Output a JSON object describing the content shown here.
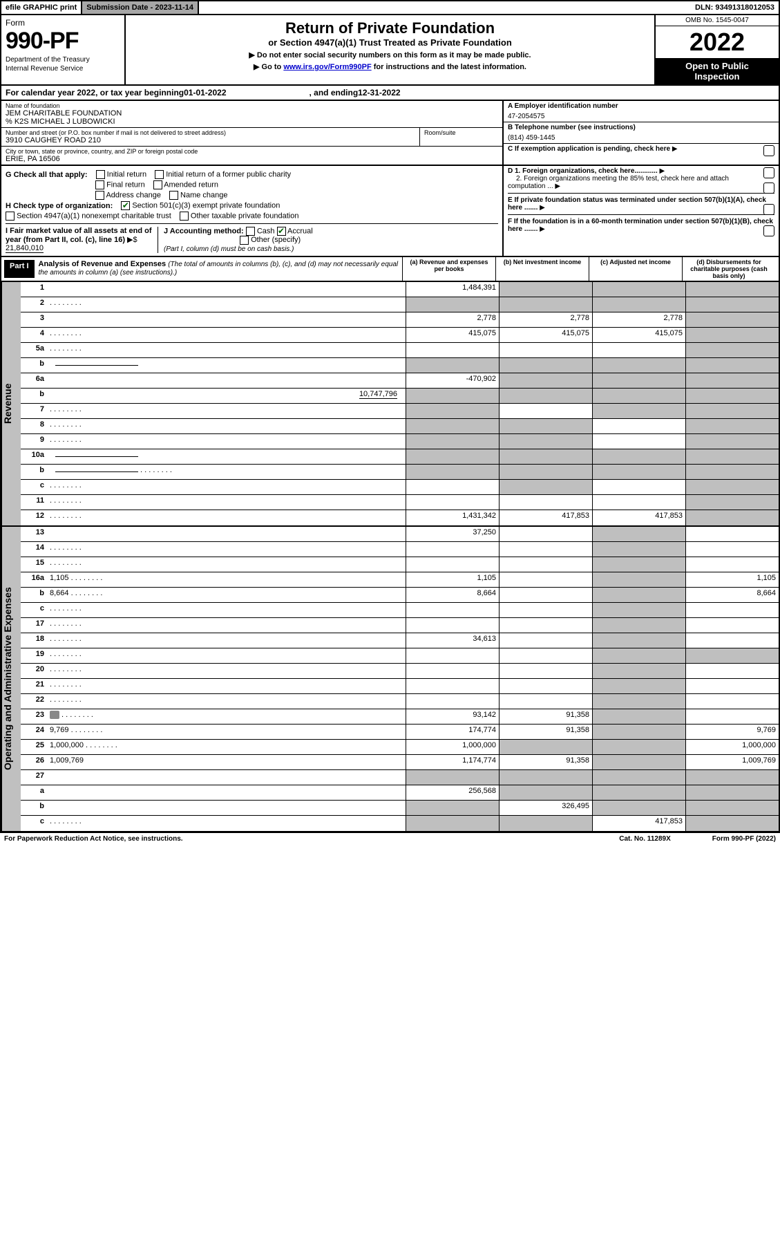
{
  "topbar": {
    "efile": "efile GRAPHIC print",
    "subdate_label": "Submission Date - ",
    "subdate": "2023-11-14",
    "dln_label": "DLN: ",
    "dln": "93491318012053"
  },
  "header": {
    "form_small": "Form",
    "form_num": "990-PF",
    "dept1": "Department of the Treasury",
    "dept2": "Internal Revenue Service",
    "title": "Return of Private Foundation",
    "subtitle": "or Section 4947(a)(1) Trust Treated as Private Foundation",
    "instr1": "Do not enter social security numbers on this form as it may be made public.",
    "instr2a": "Go to ",
    "instr2_link": "www.irs.gov/Form990PF",
    "instr2b": " for instructions and the latest information.",
    "omb": "OMB No. 1545-0047",
    "year": "2022",
    "open1": "Open to Public",
    "open2": "Inspection"
  },
  "calendar": {
    "text1": "For calendar year 2022, or tax year beginning ",
    "begin": "01-01-2022",
    "text2": ", and ending ",
    "end": "12-31-2022"
  },
  "entity": {
    "name_label": "Name of foundation",
    "name1": "JEM CHARITABLE FOUNDATION",
    "name2": "% K2S MICHAEL J LUBOWICKI",
    "addr_label": "Number and street (or P.O. box number if mail is not delivered to street address)",
    "addr": "3910 CAUGHEY ROAD 210",
    "room_label": "Room/suite",
    "citystate_label": "City or town, state or province, country, and ZIP or foreign postal code",
    "citystate": "ERIE, PA  16506",
    "ein_label": "A Employer identification number",
    "ein": "47-2054575",
    "phone_label": "B Telephone number (see instructions)",
    "phone": "(814) 459-1445",
    "c_text": "C If exemption application is pending, check here",
    "d1": "D 1. Foreign organizations, check here............",
    "d2": "2. Foreign organizations meeting the 85% test, check here and attach computation ...",
    "e_text": "E  If private foundation status was terminated under section 507(b)(1)(A), check here .......",
    "f_text": "F  If the foundation is in a 60-month termination under section 507(b)(1)(B), check here .......",
    "g_label": "G Check all that apply:",
    "g_opts": [
      "Initial return",
      "Initial return of a former public charity",
      "Final return",
      "Amended return",
      "Address change",
      "Name change"
    ],
    "h_label": "H Check type of organization:",
    "h1": "Section 501(c)(3) exempt private foundation",
    "h2": "Section 4947(a)(1) nonexempt charitable trust",
    "h3": "Other taxable private foundation",
    "i_label": "I Fair market value of all assets at end of year (from Part II, col. (c), line 16)",
    "i_val": "21,840,010",
    "j_label": "J Accounting method:",
    "j_cash": "Cash",
    "j_accrual": "Accrual",
    "j_other": "Other (specify)",
    "j_note": "(Part I, column (d) must be on cash basis.)"
  },
  "part1": {
    "tag": "Part I",
    "title": "Analysis of Revenue and Expenses",
    "title_note": "(The total of amounts in columns (b), (c), and (d) may not necessarily equal the amounts in column (a) (see instructions).)",
    "col_a": "(a)   Revenue and expenses per books",
    "col_b": "(b)   Net investment income",
    "col_c": "(c)   Adjusted net income",
    "col_d": "(d)   Disbursements for charitable purposes (cash basis only)"
  },
  "sidelabels": {
    "revenue": "Revenue",
    "expenses": "Operating and Administrative Expenses"
  },
  "rows": [
    {
      "n": "1",
      "d": "",
      "a": "1,484,391",
      "b": "",
      "c": "",
      "sh": [
        "b",
        "c",
        "d"
      ]
    },
    {
      "n": "2",
      "d": "",
      "dots": true,
      "a": "",
      "b": "",
      "c": "",
      "sh": [
        "a",
        "b",
        "c",
        "d"
      ]
    },
    {
      "n": "3",
      "d": "",
      "a": "2,778",
      "b": "2,778",
      "c": "2,778",
      "sh": [
        "d"
      ]
    },
    {
      "n": "4",
      "d": "",
      "dots": true,
      "a": "415,075",
      "b": "415,075",
      "c": "415,075",
      "sh": [
        "d"
      ]
    },
    {
      "n": "5a",
      "d": "",
      "dots": true,
      "a": "",
      "b": "",
      "c": "",
      "sh": [
        "d"
      ]
    },
    {
      "n": "b",
      "d": "",
      "inline": true,
      "a": "",
      "b": "",
      "c": "",
      "sh": [
        "a",
        "b",
        "c",
        "d"
      ]
    },
    {
      "n": "6a",
      "d": "",
      "a": "-470,902",
      "b": "",
      "c": "",
      "sh": [
        "b",
        "c",
        "d"
      ]
    },
    {
      "n": "b",
      "d": "",
      "inline_val": "10,747,796",
      "a": "",
      "b": "",
      "c": "",
      "sh": [
        "a",
        "b",
        "c",
        "d"
      ]
    },
    {
      "n": "7",
      "d": "",
      "dots": true,
      "a": "",
      "b": "",
      "c": "",
      "sh": [
        "a",
        "c",
        "d"
      ]
    },
    {
      "n": "8",
      "d": "",
      "dots": true,
      "a": "",
      "b": "",
      "c": "",
      "sh": [
        "a",
        "b",
        "d"
      ]
    },
    {
      "n": "9",
      "d": "",
      "dots": true,
      "a": "",
      "b": "",
      "c": "",
      "sh": [
        "a",
        "b",
        "d"
      ]
    },
    {
      "n": "10a",
      "d": "",
      "inline": true,
      "a": "",
      "b": "",
      "c": "",
      "sh": [
        "a",
        "b",
        "c",
        "d"
      ]
    },
    {
      "n": "b",
      "d": "",
      "inline": true,
      "dots": true,
      "a": "",
      "b": "",
      "c": "",
      "sh": [
        "a",
        "b",
        "c",
        "d"
      ]
    },
    {
      "n": "c",
      "d": "",
      "dots": true,
      "a": "",
      "b": "",
      "c": "",
      "sh": [
        "b",
        "d"
      ]
    },
    {
      "n": "11",
      "d": "",
      "dots": true,
      "a": "",
      "b": "",
      "c": "",
      "sh": [
        "d"
      ]
    },
    {
      "n": "12",
      "d": "",
      "dots": true,
      "a": "1,431,342",
      "b": "417,853",
      "c": "417,853",
      "sh": [
        "d"
      ]
    }
  ],
  "exp_rows": [
    {
      "n": "13",
      "d": "",
      "a": "37,250",
      "b": "",
      "c": "",
      "sh": [
        "c"
      ]
    },
    {
      "n": "14",
      "d": "",
      "dots": true,
      "a": "",
      "b": "",
      "c": "",
      "sh": [
        "c"
      ]
    },
    {
      "n": "15",
      "d": "",
      "dots": true,
      "a": "",
      "b": "",
      "c": "",
      "sh": [
        "c"
      ]
    },
    {
      "n": "16a",
      "d": "1,105",
      "dots": true,
      "a": "1,105",
      "b": "",
      "c": "",
      "sh": [
        "c"
      ]
    },
    {
      "n": "b",
      "d": "8,664",
      "dots": true,
      "a": "8,664",
      "b": "",
      "c": "",
      "sh": [
        "c"
      ]
    },
    {
      "n": "c",
      "d": "",
      "dots": true,
      "a": "",
      "b": "",
      "c": "",
      "sh": [
        "c"
      ]
    },
    {
      "n": "17",
      "d": "",
      "dots": true,
      "a": "",
      "b": "",
      "c": "",
      "sh": [
        "c"
      ]
    },
    {
      "n": "18",
      "d": "",
      "dots": true,
      "a": "34,613",
      "b": "",
      "c": "",
      "sh": [
        "c"
      ]
    },
    {
      "n": "19",
      "d": "",
      "dots": true,
      "a": "",
      "b": "",
      "c": "",
      "sh": [
        "c",
        "d"
      ]
    },
    {
      "n": "20",
      "d": "",
      "dots": true,
      "a": "",
      "b": "",
      "c": "",
      "sh": [
        "c"
      ]
    },
    {
      "n": "21",
      "d": "",
      "dots": true,
      "a": "",
      "b": "",
      "c": "",
      "sh": [
        "c"
      ]
    },
    {
      "n": "22",
      "d": "",
      "dots": true,
      "a": "",
      "b": "",
      "c": "",
      "sh": [
        "c"
      ]
    },
    {
      "n": "23",
      "d": "",
      "dots": true,
      "icon": true,
      "a": "93,142",
      "b": "91,358",
      "c": "",
      "sh": [
        "c"
      ]
    },
    {
      "n": "24",
      "d": "9,769",
      "dots": true,
      "a": "174,774",
      "b": "91,358",
      "c": "",
      "sh": [
        "c"
      ]
    },
    {
      "n": "25",
      "d": "1,000,000",
      "dots": true,
      "a": "1,000,000",
      "b": "",
      "c": "",
      "sh": [
        "b",
        "c"
      ]
    },
    {
      "n": "26",
      "d": "1,009,769",
      "a": "1,174,774",
      "b": "91,358",
      "c": "",
      "sh": [
        "c"
      ]
    },
    {
      "n": "27",
      "d": "",
      "a": "",
      "b": "",
      "c": "",
      "sh": [
        "a",
        "b",
        "c",
        "d"
      ]
    },
    {
      "n": "a",
      "d": "",
      "a": "256,568",
      "b": "",
      "c": "",
      "sh": [
        "b",
        "c",
        "d"
      ]
    },
    {
      "n": "b",
      "d": "",
      "a": "",
      "b": "326,495",
      "c": "",
      "sh": [
        "a",
        "c",
        "d"
      ]
    },
    {
      "n": "c",
      "d": "",
      "dots": true,
      "a": "",
      "b": "",
      "c": "417,853",
      "sh": [
        "a",
        "b",
        "d"
      ]
    }
  ],
  "footer": {
    "left": "For Paperwork Reduction Act Notice, see instructions.",
    "mid": "Cat. No. 11289X",
    "right": "Form 990-PF (2022)"
  }
}
